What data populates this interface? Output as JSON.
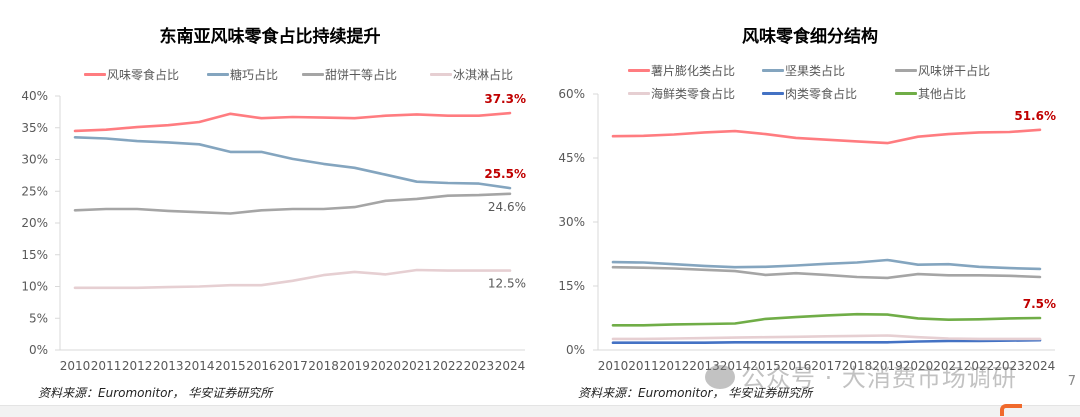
{
  "chart_data": [
    {
      "type": "line",
      "title": "东南亚风味零食占比持续提升",
      "xlabel": "",
      "ylabel": "",
      "x": [
        "2010",
        "2011",
        "2012",
        "2013",
        "2014",
        "2015",
        "2016",
        "2017",
        "2018",
        "2019",
        "2020",
        "2021",
        "2022",
        "2023",
        "2024"
      ],
      "ylim": [
        0,
        40
      ],
      "yticks": [
        "0%",
        "5%",
        "10%",
        "15%",
        "20%",
        "25%",
        "30%",
        "35%",
        "40%"
      ],
      "ytick_values": [
        0,
        5,
        10,
        15,
        20,
        25,
        30,
        35,
        40
      ],
      "grid": false,
      "legend_position": "top",
      "series": [
        {
          "name": "风味零食占比",
          "color": "#ff7c80",
          "values": [
            34.5,
            34.7,
            35.1,
            35.4,
            35.9,
            37.2,
            36.5,
            36.7,
            36.6,
            36.5,
            36.9,
            37.1,
            36.9,
            36.9,
            37.3
          ]
        },
        {
          "name": "糖巧占比",
          "color": "#84a5bf",
          "values": [
            33.5,
            33.3,
            32.9,
            32.7,
            32.4,
            31.2,
            31.2,
            30.1,
            29.3,
            28.7,
            27.6,
            26.5,
            26.3,
            26.2,
            25.5
          ]
        },
        {
          "name": "甜饼干等占比",
          "color": "#a5a5a5",
          "values": [
            22.0,
            22.2,
            22.2,
            21.9,
            21.7,
            21.5,
            22.0,
            22.2,
            22.2,
            22.5,
            23.5,
            23.8,
            24.3,
            24.4,
            24.6
          ]
        },
        {
          "name": "冰淇淋占比",
          "color": "#e6cfd2",
          "values": [
            9.8,
            9.8,
            9.8,
            9.9,
            10.0,
            10.2,
            10.2,
            10.9,
            11.8,
            12.3,
            11.9,
            12.6,
            12.5,
            12.5,
            12.5
          ]
        }
      ],
      "annotations": [
        {
          "text": "37.3%",
          "series": "风味零食占比",
          "x": "2024",
          "color": "#c00000",
          "bold": true,
          "pos": "above"
        },
        {
          "text": "25.5%",
          "series": "糖巧占比",
          "x": "2024",
          "color": "#c00000",
          "bold": true,
          "pos": "above"
        },
        {
          "text": "24.6%",
          "series": "甜饼干等占比",
          "x": "2024",
          "color": "#595959",
          "bold": false,
          "pos": "below"
        },
        {
          "text": "12.5%",
          "series": "冰淇淋占比",
          "x": "2024",
          "color": "#595959",
          "bold": false,
          "pos": "below"
        }
      ]
    },
    {
      "type": "line",
      "title": "风味零食细分结构",
      "xlabel": "",
      "ylabel": "",
      "x": [
        "2010",
        "2011",
        "2012",
        "2013",
        "2014",
        "2015",
        "2016",
        "2017",
        "2018",
        "2019",
        "2020",
        "2021",
        "2022",
        "2023",
        "2024"
      ],
      "ylim": [
        0,
        60
      ],
      "yticks": [
        "0%",
        "15%",
        "30%",
        "45%",
        "60%"
      ],
      "ytick_values": [
        0,
        15,
        30,
        45,
        60
      ],
      "grid": false,
      "legend_position": "top",
      "series": [
        {
          "name": "薯片膨化类占比",
          "color": "#ff7c80",
          "values": [
            50.1,
            50.2,
            50.5,
            51.0,
            51.3,
            50.6,
            49.7,
            49.3,
            48.9,
            48.5,
            50.0,
            50.6,
            51.0,
            51.1,
            51.6
          ]
        },
        {
          "name": "坚果类占比",
          "color": "#84a5bf",
          "values": [
            20.6,
            20.5,
            20.1,
            19.7,
            19.4,
            19.5,
            19.8,
            20.2,
            20.5,
            21.1,
            20.0,
            20.1,
            19.5,
            19.2,
            19.0
          ]
        },
        {
          "name": "风味饼干占比",
          "color": "#a5a5a5",
          "values": [
            19.4,
            19.3,
            19.1,
            18.8,
            18.5,
            17.6,
            18.0,
            17.6,
            17.1,
            16.9,
            17.8,
            17.5,
            17.5,
            17.4,
            17.1
          ]
        },
        {
          "name": "海鲜类零食占比",
          "color": "#e6cfd2",
          "values": [
            2.6,
            2.6,
            2.7,
            2.8,
            2.9,
            3.0,
            3.1,
            3.2,
            3.3,
            3.4,
            3.0,
            2.7,
            2.6,
            2.6,
            2.6
          ]
        },
        {
          "name": "肉类零食占比",
          "color": "#4472c4",
          "values": [
            1.7,
            1.7,
            1.7,
            1.7,
            1.8,
            1.8,
            1.8,
            1.8,
            1.8,
            1.8,
            2.0,
            2.1,
            2.1,
            2.2,
            2.3
          ]
        },
        {
          "name": "其他占比",
          "color": "#70ad47",
          "values": [
            5.8,
            5.8,
            6.0,
            6.1,
            6.2,
            7.3,
            7.7,
            8.1,
            8.4,
            8.3,
            7.4,
            7.1,
            7.2,
            7.4,
            7.5
          ]
        }
      ],
      "annotations": [
        {
          "text": "51.6%",
          "series": "薯片膨化类占比",
          "x": "2024",
          "color": "#c00000",
          "bold": true,
          "pos": "above"
        },
        {
          "text": "7.5%",
          "series": "其他占比",
          "x": "2024",
          "color": "#c00000",
          "bold": true,
          "pos": "above"
        }
      ]
    }
  ],
  "source_note": "资料来源：Euromonitor， 华安证券研究所",
  "watermark": "公众号 · 大消费市场调研",
  "page_number": "7"
}
